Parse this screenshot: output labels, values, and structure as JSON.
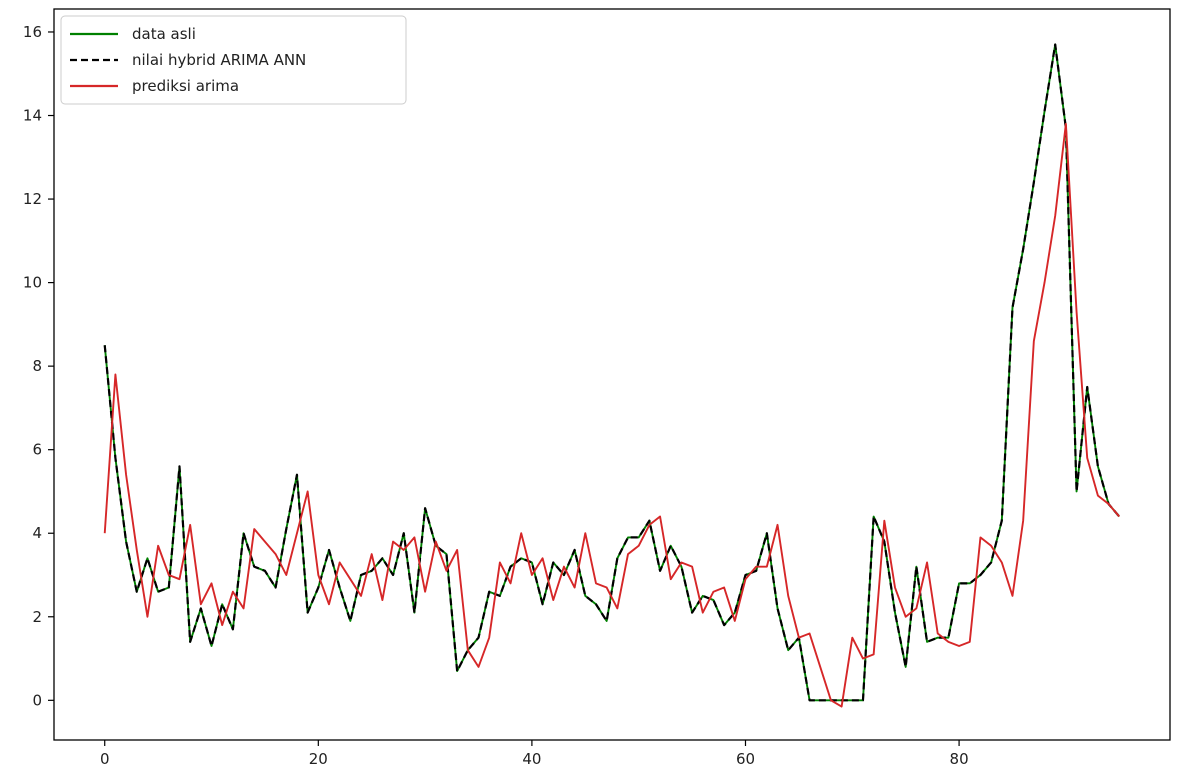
{
  "chart_data": {
    "type": "line",
    "title": "",
    "xlabel": "",
    "ylabel": "",
    "xlim": [
      -4.75,
      99.75
    ],
    "ylim": [
      -0.95,
      16.55
    ],
    "xticks": [
      0,
      20,
      40,
      60,
      80
    ],
    "yticks": [
      0,
      2,
      4,
      6,
      8,
      10,
      12,
      14,
      16
    ],
    "grid": false,
    "legend": {
      "position": "upper left"
    },
    "series": [
      {
        "name": "data asli",
        "color": "#008000",
        "style": "solid",
        "x": [
          0,
          1,
          2,
          3,
          4,
          5,
          6,
          7,
          8,
          9,
          10,
          11,
          12,
          13,
          14,
          15,
          16,
          17,
          18,
          19,
          20,
          21,
          22,
          23,
          24,
          25,
          26,
          27,
          28,
          29,
          30,
          31,
          32,
          33,
          34,
          35,
          36,
          37,
          38,
          39,
          40,
          41,
          42,
          43,
          44,
          45,
          46,
          47,
          48,
          49,
          50,
          51,
          52,
          53,
          54,
          55,
          56,
          57,
          58,
          59,
          60,
          61,
          62,
          63,
          64,
          65,
          66,
          67,
          68,
          69,
          70,
          71,
          72,
          73,
          74,
          75,
          76,
          77,
          78,
          79,
          80,
          81,
          82,
          83,
          84,
          85,
          86,
          87,
          88,
          89,
          90,
          91,
          92,
          93,
          94,
          95
        ],
        "values": [
          8.5,
          5.8,
          3.8,
          2.6,
          3.4,
          2.6,
          2.7,
          5.6,
          1.4,
          2.2,
          1.3,
          2.3,
          1.7,
          4.0,
          3.2,
          3.1,
          2.7,
          4.1,
          5.4,
          2.1,
          2.7,
          3.6,
          2.7,
          1.9,
          3.0,
          3.1,
          3.4,
          3.0,
          4.0,
          2.1,
          4.6,
          3.7,
          3.5,
          0.7,
          1.2,
          1.5,
          2.6,
          2.5,
          3.2,
          3.4,
          3.3,
          2.3,
          3.3,
          3.0,
          3.6,
          2.5,
          2.3,
          1.9,
          3.4,
          3.9,
          3.9,
          4.3,
          3.1,
          3.7,
          3.2,
          2.1,
          2.5,
          2.4,
          1.8,
          2.1,
          3.0,
          3.1,
          4.0,
          2.2,
          1.2,
          1.5,
          0.0,
          0.0,
          0.0,
          0.0,
          0.0,
          0.0,
          4.4,
          3.8,
          2.1,
          0.8,
          3.2,
          1.4,
          1.5,
          1.5,
          2.8,
          2.8,
          3.0,
          3.3,
          4.3,
          9.4,
          10.8,
          12.4,
          14.1,
          15.7,
          13.7,
          5.0,
          7.5,
          5.6,
          4.7,
          4.4
        ]
      },
      {
        "name": "nilai hybrid ARIMA ANN",
        "color": "#000000",
        "style": "dashed",
        "x": [
          0,
          1,
          2,
          3,
          4,
          5,
          6,
          7,
          8,
          9,
          10,
          11,
          12,
          13,
          14,
          15,
          16,
          17,
          18,
          19,
          20,
          21,
          22,
          23,
          24,
          25,
          26,
          27,
          28,
          29,
          30,
          31,
          32,
          33,
          34,
          35,
          36,
          37,
          38,
          39,
          40,
          41,
          42,
          43,
          44,
          45,
          46,
          47,
          48,
          49,
          50,
          51,
          52,
          53,
          54,
          55,
          56,
          57,
          58,
          59,
          60,
          61,
          62,
          63,
          64,
          65,
          66,
          67,
          68,
          69,
          70,
          71,
          72,
          73,
          74,
          75,
          76,
          77,
          78,
          79,
          80,
          81,
          82,
          83,
          84,
          85,
          86,
          87,
          88,
          89,
          90,
          91,
          92,
          93,
          94,
          95
        ],
        "values": [
          8.5,
          5.8,
          3.8,
          2.6,
          3.4,
          2.6,
          2.7,
          5.6,
          1.4,
          2.2,
          1.3,
          2.3,
          1.7,
          4.0,
          3.2,
          3.1,
          2.7,
          4.1,
          5.4,
          2.1,
          2.7,
          3.6,
          2.7,
          1.9,
          3.0,
          3.1,
          3.4,
          3.0,
          4.0,
          2.1,
          4.6,
          3.7,
          3.5,
          0.7,
          1.2,
          1.5,
          2.6,
          2.5,
          3.2,
          3.4,
          3.3,
          2.3,
          3.3,
          3.0,
          3.6,
          2.5,
          2.3,
          1.9,
          3.4,
          3.9,
          3.9,
          4.3,
          3.1,
          3.7,
          3.2,
          2.1,
          2.5,
          2.4,
          1.8,
          2.1,
          3.0,
          3.1,
          4.0,
          2.2,
          1.2,
          1.5,
          0.0,
          0.0,
          0.0,
          0.0,
          0.0,
          0.0,
          4.4,
          3.8,
          2.1,
          0.8,
          3.2,
          1.4,
          1.5,
          1.5,
          2.8,
          2.8,
          3.0,
          3.3,
          4.3,
          9.4,
          10.8,
          12.4,
          14.1,
          15.7,
          13.7,
          5.0,
          7.5,
          5.6,
          4.7,
          4.4
        ]
      },
      {
        "name": "prediksi arima",
        "color": "#d62728",
        "style": "solid",
        "x": [
          0,
          1,
          2,
          3,
          4,
          5,
          6,
          7,
          8,
          9,
          10,
          11,
          12,
          13,
          14,
          15,
          16,
          17,
          18,
          19,
          20,
          21,
          22,
          23,
          24,
          25,
          26,
          27,
          28,
          29,
          30,
          31,
          32,
          33,
          34,
          35,
          36,
          37,
          38,
          39,
          40,
          41,
          42,
          43,
          44,
          45,
          46,
          47,
          48,
          49,
          50,
          51,
          52,
          53,
          54,
          55,
          56,
          57,
          58,
          59,
          60,
          61,
          62,
          63,
          64,
          65,
          66,
          67,
          68,
          69,
          70,
          71,
          72,
          73,
          74,
          75,
          76,
          77,
          78,
          79,
          80,
          81,
          82,
          83,
          84,
          85,
          86,
          87,
          88,
          89,
          90,
          91,
          92,
          93,
          94,
          95
        ],
        "values": [
          4.0,
          7.8,
          5.4,
          3.6,
          2.0,
          3.7,
          3.0,
          2.9,
          4.2,
          2.3,
          2.8,
          1.8,
          2.6,
          2.2,
          4.1,
          3.8,
          3.5,
          3.0,
          4.0,
          5.0,
          3.0,
          2.3,
          3.3,
          2.9,
          2.5,
          3.5,
          2.4,
          3.8,
          3.6,
          3.9,
          2.6,
          3.8,
          3.1,
          3.6,
          1.2,
          0.8,
          1.5,
          3.3,
          2.8,
          4.0,
          3.0,
          3.4,
          2.4,
          3.2,
          2.7,
          4.0,
          2.8,
          2.7,
          2.2,
          3.5,
          3.7,
          4.2,
          4.4,
          2.9,
          3.3,
          3.2,
          2.1,
          2.6,
          2.7,
          1.9,
          2.9,
          3.2,
          3.2,
          4.2,
          2.5,
          1.5,
          1.6,
          0.8,
          0.0,
          -0.15,
          1.5,
          1.0,
          1.1,
          4.3,
          2.7,
          2.0,
          2.2,
          3.3,
          1.6,
          1.4,
          1.3,
          1.4,
          3.9,
          3.7,
          3.3,
          2.5,
          4.3,
          8.6,
          10.0,
          11.6,
          13.8,
          9.3,
          5.8,
          4.9,
          4.7,
          4.4
        ]
      }
    ]
  }
}
